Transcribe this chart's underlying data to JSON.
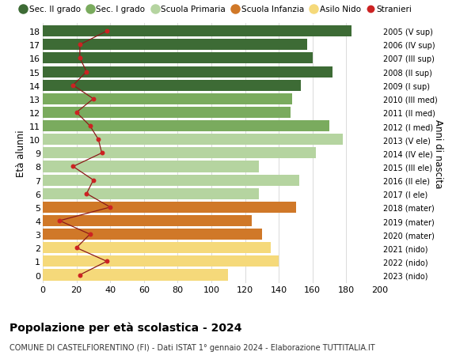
{
  "ages": [
    18,
    17,
    16,
    15,
    14,
    13,
    12,
    11,
    10,
    9,
    8,
    7,
    6,
    5,
    4,
    3,
    2,
    1,
    0
  ],
  "right_labels": [
    "2005 (V sup)",
    "2006 (IV sup)",
    "2007 (III sup)",
    "2008 (II sup)",
    "2009 (I sup)",
    "2010 (III med)",
    "2011 (II med)",
    "2012 (I med)",
    "2013 (V ele)",
    "2014 (IV ele)",
    "2015 (III ele)",
    "2016 (II ele)",
    "2017 (I ele)",
    "2018 (mater)",
    "2019 (mater)",
    "2020 (mater)",
    "2021 (nido)",
    "2022 (nido)",
    "2023 (nido)"
  ],
  "bar_values": [
    183,
    157,
    160,
    172,
    153,
    148,
    147,
    170,
    178,
    162,
    128,
    152,
    128,
    150,
    124,
    130,
    135,
    140,
    110
  ],
  "bar_colors": [
    "#3d6b35",
    "#3d6b35",
    "#3d6b35",
    "#3d6b35",
    "#3d6b35",
    "#7aab5e",
    "#7aab5e",
    "#7aab5e",
    "#b5d4a0",
    "#b5d4a0",
    "#b5d4a0",
    "#b5d4a0",
    "#b5d4a0",
    "#d07828",
    "#d07828",
    "#d07828",
    "#f5d97a",
    "#f5d97a",
    "#f5d97a"
  ],
  "stranieri_values": [
    38,
    22,
    22,
    26,
    18,
    30,
    20,
    28,
    33,
    35,
    18,
    30,
    26,
    40,
    10,
    28,
    20,
    38,
    22
  ],
  "legend_labels": [
    "Sec. II grado",
    "Sec. I grado",
    "Scuola Primaria",
    "Scuola Infanzia",
    "Asilo Nido",
    "Stranieri"
  ],
  "legend_colors": [
    "#3d6b35",
    "#7aab5e",
    "#b5d4a0",
    "#d07828",
    "#f5d97a",
    "#cc2222"
  ],
  "title": "Popolazione per età scolastica - 2024",
  "subtitle": "COMUNE DI CASTELFIORENTINO (FI) - Dati ISTAT 1° gennaio 2024 - Elaborazione TUTTITALIA.IT",
  "ylabel_left": "Età alunni",
  "ylabel_right": "Anni di nascita",
  "xlim": [
    0,
    200
  ],
  "xticks": [
    0,
    20,
    40,
    60,
    80,
    100,
    120,
    140,
    160,
    180,
    200
  ],
  "bg_color": "#ffffff",
  "grid_color": "#cccccc",
  "bar_height": 0.82,
  "stranieri_line_color": "#8b1a1a",
  "stranieri_dot_color": "#cc2222"
}
